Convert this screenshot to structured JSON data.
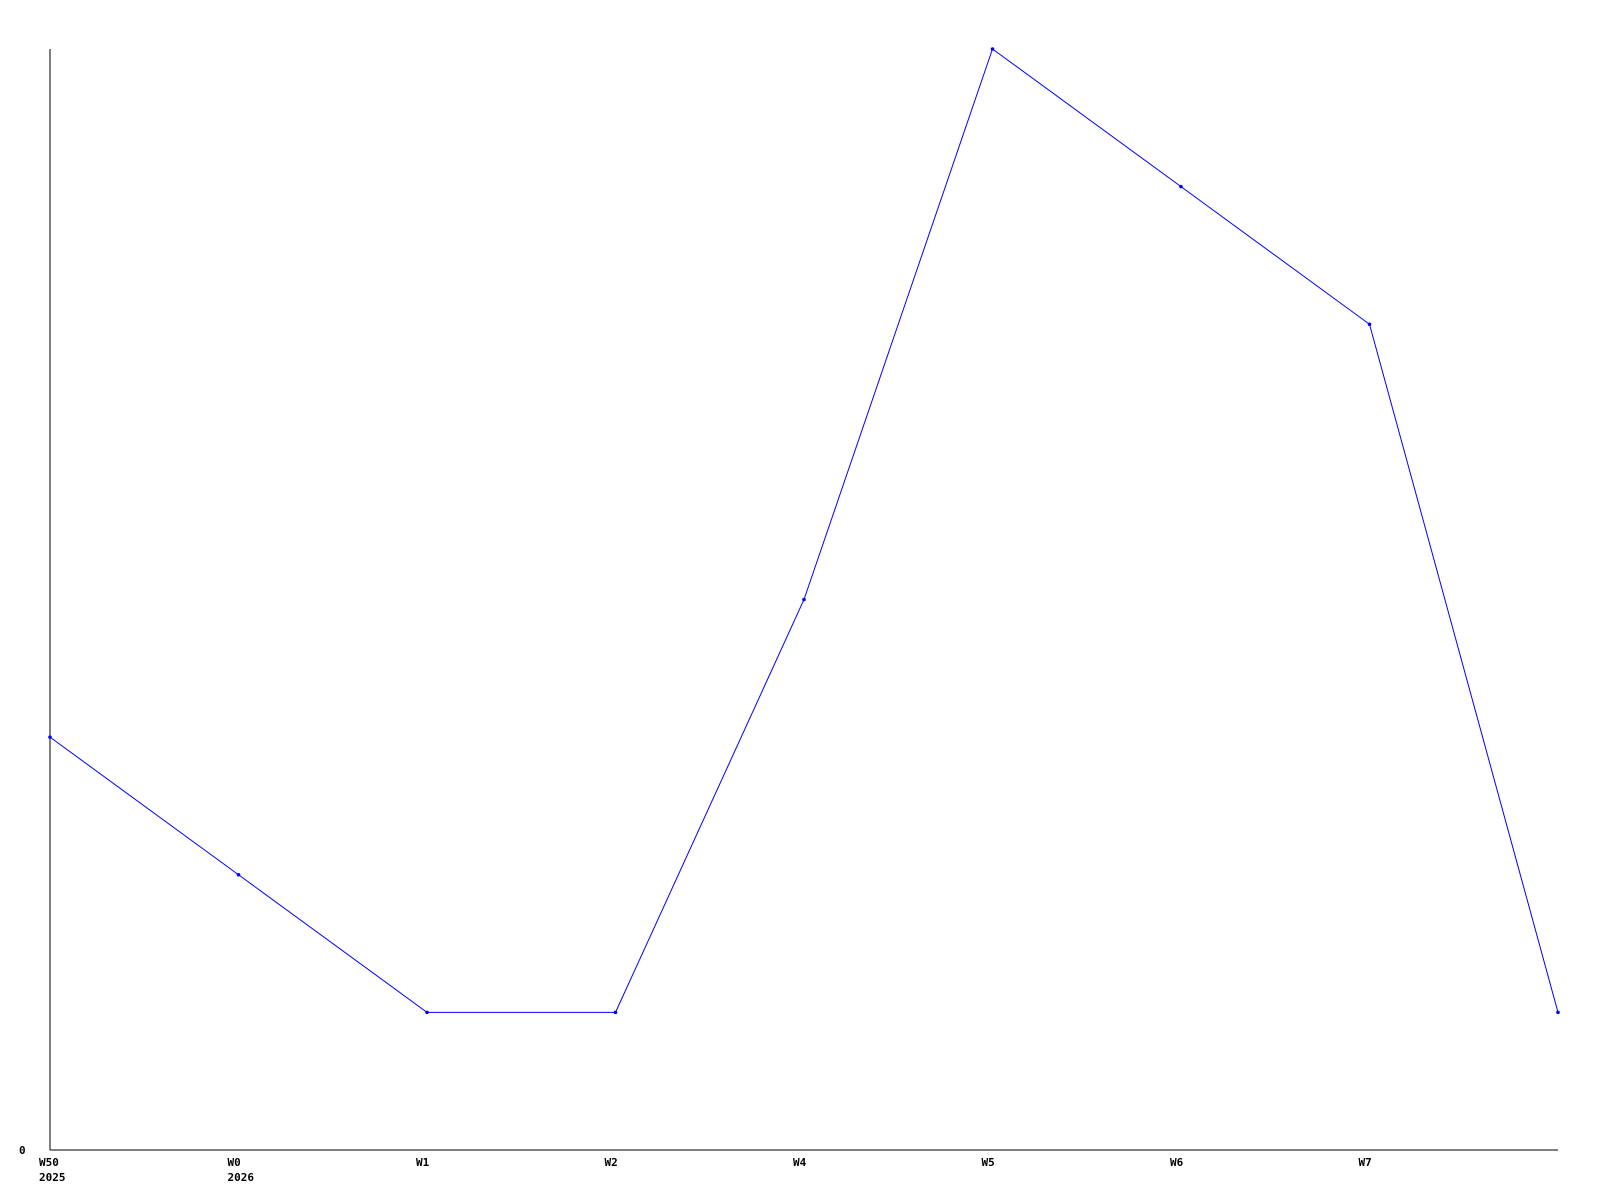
{
  "chart_data": {
    "type": "line",
    "title": "",
    "xlabel": "",
    "ylabel": "",
    "categories": [
      "W50",
      "W0",
      "W1",
      "W2",
      "W4",
      "W5",
      "W6",
      "W7",
      ""
    ],
    "category_sublabels": [
      "2025",
      "2026",
      "",
      "",
      "",
      "",
      "",
      "",
      ""
    ],
    "series": [
      {
        "values": [
          3,
          2,
          1,
          1,
          4,
          8,
          7,
          6,
          1
        ],
        "color": "#0000ff"
      }
    ],
    "y_tick_labels": [
      "0"
    ],
    "ylim": [
      0,
      8
    ],
    "grid": false,
    "legend": "none"
  }
}
